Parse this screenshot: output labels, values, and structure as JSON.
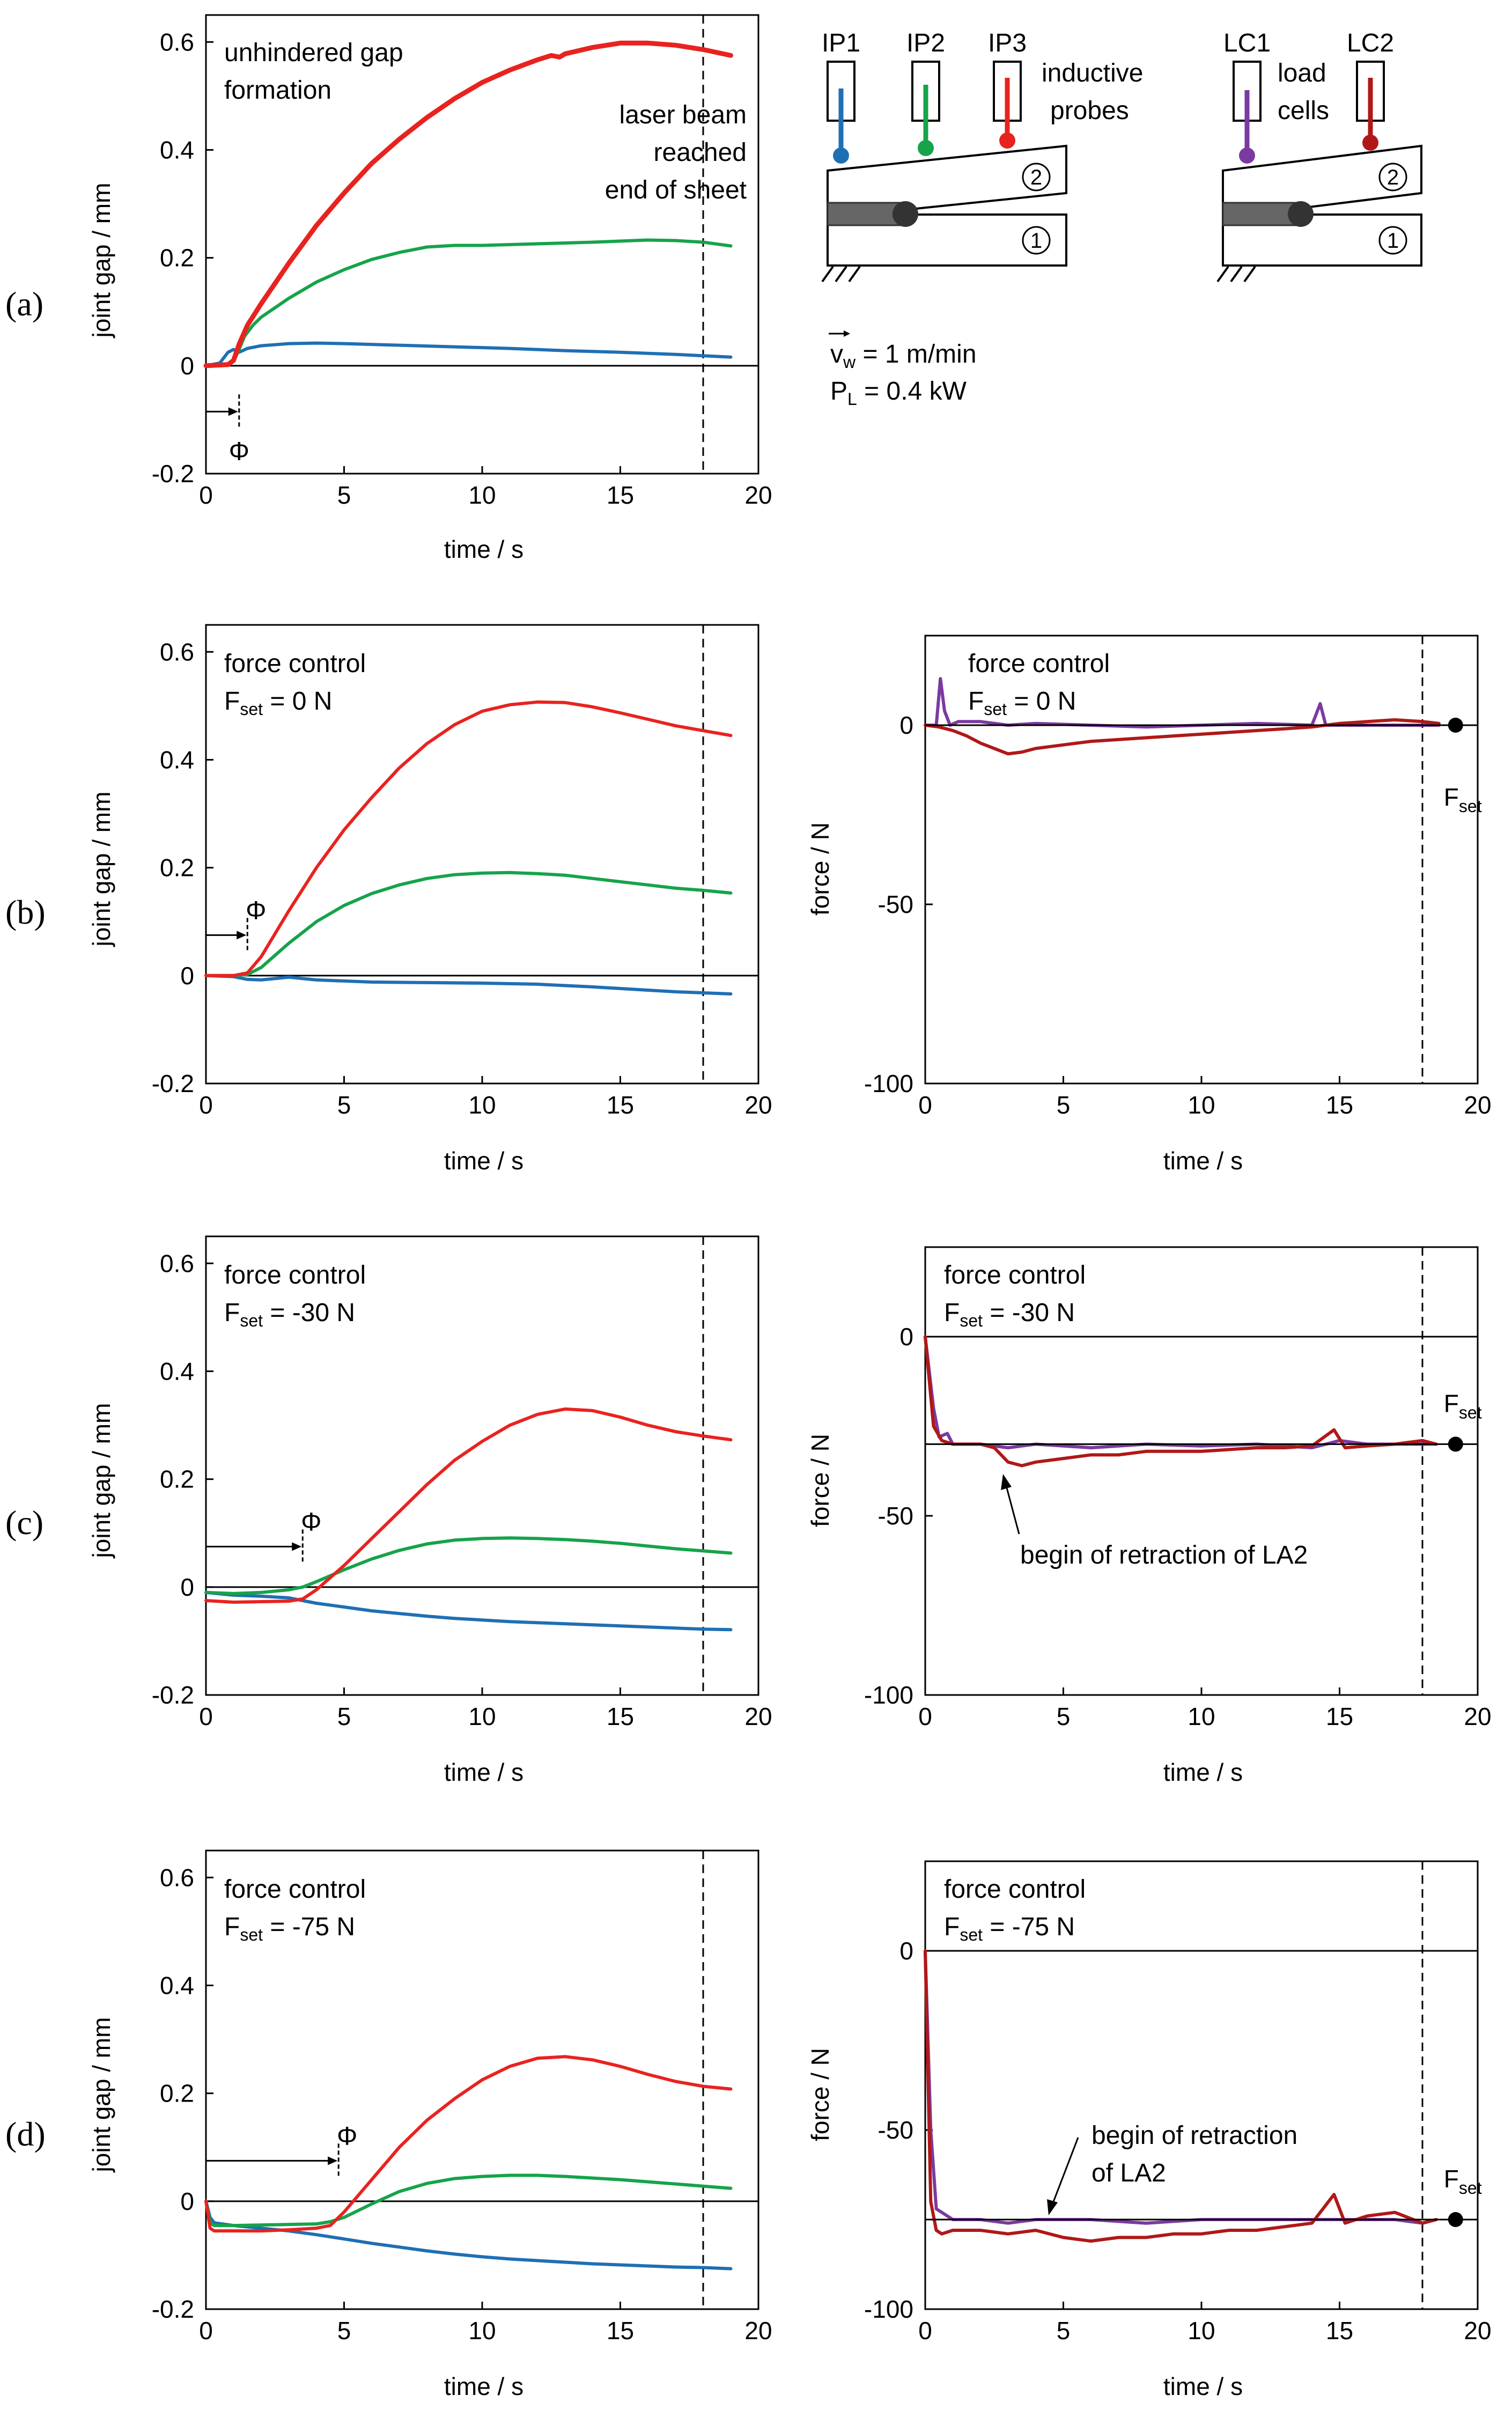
{
  "colors": {
    "ip1": "#1f6fb4",
    "ip2": "#16a34a",
    "ip3": "#e8231f",
    "lc1": "#7b3aa0",
    "lc2": "#b01818",
    "axis": "#000000"
  },
  "common": {
    "xlabel": "time / s",
    "gap_ylabel": "joint gap / mm",
    "force_ylabel": "force / N",
    "dashed_line_time": 18,
    "gap_xticks": [
      "0",
      "5",
      "10",
      "15",
      "20"
    ],
    "gap_yticks": [
      "-0.2",
      "0",
      "0.2",
      "0.4",
      "0.6"
    ],
    "force_yticks": [
      "-100",
      "-50",
      "0"
    ],
    "phi_symbol": "Φ",
    "fset_main": "F",
    "fset_sub": "set"
  },
  "legend": {
    "probes": [
      "IP1",
      "IP2",
      "IP3"
    ],
    "probes_label_line1": "inductive",
    "probes_label_line2": "probes",
    "cells": [
      "LC1",
      "LC2"
    ],
    "cells_label_line1": "load",
    "cells_label_line2": "cells",
    "part_top": "2",
    "part_bottom": "1",
    "vw_main": "v",
    "vw_sub": "w",
    "vw_value": " = 1 m/min",
    "pl_main": "P",
    "pl_sub": "L",
    "pl_value": " = 0.4 kW"
  },
  "panels": {
    "a": {
      "label": "(a)",
      "title1": "unhindered gap",
      "title2": "formation",
      "annot1": "laser beam",
      "annot2": "reached",
      "annot3": "end of sheet"
    },
    "b": {
      "label": "(b)",
      "title1": "force control",
      "fset_value": " = 0 N"
    },
    "c": {
      "label": "(c)",
      "title1": "force control",
      "fset_value": " = -30 N",
      "annot": "begin of retraction of LA2"
    },
    "d": {
      "label": "(d)",
      "title1": "force control",
      "fset_value": " = -75 N",
      "annot1": "begin of retraction",
      "annot2": "of LA2"
    }
  },
  "chart_data": [
    {
      "id": "a_gap",
      "type": "line",
      "xlabel": "time / s",
      "ylabel": "joint gap / mm",
      "xlim": [
        0,
        20
      ],
      "ylim": [
        -0.2,
        0.65
      ],
      "phi_time": 1.2,
      "series": [
        {
          "name": "IP1",
          "x": [
            0,
            0.5,
            0.8,
            1.0,
            1.2,
            1.5,
            2,
            3,
            4,
            5,
            7,
            9,
            11,
            13,
            15,
            17,
            19
          ],
          "y": [
            0,
            0.005,
            0.025,
            0.03,
            0.025,
            0.032,
            0.037,
            0.041,
            0.042,
            0.041,
            0.038,
            0.035,
            0.032,
            0.028,
            0.025,
            0.021,
            0.016
          ]
        },
        {
          "name": "IP2",
          "x": [
            0,
            0.8,
            1.0,
            1.2,
            1.4,
            1.7,
            2,
            3,
            4,
            5,
            6,
            7,
            8,
            9,
            10,
            12,
            14,
            16,
            17,
            18,
            19
          ],
          "y": [
            0,
            0.002,
            0.008,
            0.03,
            0.055,
            0.075,
            0.09,
            0.125,
            0.155,
            0.178,
            0.197,
            0.21,
            0.22,
            0.223,
            0.223,
            0.226,
            0.229,
            0.233,
            0.232,
            0.229,
            0.222
          ]
        },
        {
          "name": "IP3",
          "x": [
            0,
            0.8,
            1.0,
            1.2,
            1.5,
            2,
            3,
            4,
            5,
            6,
            7,
            8,
            9,
            10,
            11,
            12,
            12.5,
            12.8,
            13,
            14,
            15,
            16,
            17,
            18,
            19
          ],
          "y": [
            0,
            0.002,
            0.01,
            0.04,
            0.075,
            0.115,
            0.19,
            0.26,
            0.32,
            0.375,
            0.42,
            0.46,
            0.495,
            0.525,
            0.548,
            0.567,
            0.575,
            0.572,
            0.578,
            0.59,
            0.598,
            0.598,
            0.594,
            0.586,
            0.575
          ]
        }
      ]
    },
    {
      "id": "b_gap",
      "type": "line",
      "xlabel": "time / s",
      "ylabel": "joint gap / mm",
      "xlim": [
        0,
        20
      ],
      "ylim": [
        -0.2,
        0.65
      ],
      "phi_time": 1.5,
      "series": [
        {
          "name": "IP1",
          "x": [
            0,
            1,
            1.5,
            2,
            3,
            4,
            6,
            8,
            10,
            12,
            14,
            16,
            17,
            19
          ],
          "y": [
            0,
            -0.002,
            -0.007,
            -0.008,
            -0.003,
            -0.008,
            -0.012,
            -0.013,
            -0.014,
            -0.016,
            -0.021,
            -0.027,
            -0.03,
            -0.034
          ]
        },
        {
          "name": "IP2",
          "x": [
            0,
            1,
            1.5,
            2,
            3,
            4,
            5,
            6,
            7,
            8,
            9,
            10,
            11,
            12,
            13,
            14,
            15,
            16,
            17,
            18,
            19
          ],
          "y": [
            0,
            0,
            0.002,
            0.015,
            0.06,
            0.1,
            0.13,
            0.152,
            0.168,
            0.18,
            0.187,
            0.19,
            0.191,
            0.189,
            0.186,
            0.18,
            0.174,
            0.168,
            0.162,
            0.158,
            0.153
          ]
        },
        {
          "name": "IP3",
          "x": [
            0,
            1,
            1.5,
            2,
            3,
            4,
            5,
            6,
            7,
            8,
            9,
            10,
            11,
            12,
            13,
            14,
            15,
            16,
            17,
            18,
            19
          ],
          "y": [
            0,
            0,
            0.005,
            0.035,
            0.12,
            0.2,
            0.27,
            0.33,
            0.385,
            0.43,
            0.465,
            0.49,
            0.502,
            0.507,
            0.506,
            0.498,
            0.487,
            0.475,
            0.463,
            0.454,
            0.445
          ]
        }
      ]
    },
    {
      "id": "b_force",
      "type": "line",
      "xlabel": "time / s",
      "ylabel": "force / N",
      "xlim": [
        0,
        20
      ],
      "ylim": [
        -100,
        25
      ],
      "fset": 0,
      "fset_time": 19.2,
      "series": [
        {
          "name": "LC1",
          "x": [
            0,
            0.4,
            0.55,
            0.7,
            0.9,
            1.2,
            2,
            3,
            4,
            6,
            8,
            10,
            12,
            14,
            14.3,
            14.5,
            14.8,
            16,
            18,
            18.6
          ],
          "y": [
            0,
            0,
            13,
            4,
            0,
            1,
            1,
            0,
            0.5,
            0,
            -0.5,
            0,
            0.5,
            0,
            6,
            0,
            0,
            0,
            0,
            0
          ]
        },
        {
          "name": "LC2",
          "x": [
            0,
            0.5,
            1.0,
            1.5,
            2,
            2.5,
            3,
            3.5,
            4,
            5,
            6,
            7,
            8,
            9,
            10,
            11,
            12,
            13,
            14,
            15,
            16,
            17,
            18,
            18.6
          ],
          "y": [
            0,
            -0.5,
            -1.5,
            -3,
            -5,
            -6.5,
            -8,
            -7.5,
            -6.5,
            -5.5,
            -4.5,
            -4,
            -3.5,
            -3,
            -2.5,
            -2,
            -1.5,
            -1,
            -0.5,
            0.5,
            1,
            1.5,
            1,
            0.5
          ]
        }
      ]
    },
    {
      "id": "c_gap",
      "type": "line",
      "xlabel": "time / s",
      "ylabel": "joint gap / mm",
      "xlim": [
        0,
        20
      ],
      "ylim": [
        -0.2,
        0.65
      ],
      "phi_time": 3.5,
      "series": [
        {
          "name": "IP1",
          "x": [
            0,
            1,
            2,
            3,
            3.5,
            4,
            5,
            6,
            7,
            8,
            9,
            10,
            11,
            12,
            13,
            14,
            15,
            16,
            17,
            18,
            19
          ],
          "y": [
            -0.01,
            -0.015,
            -0.017,
            -0.02,
            -0.025,
            -0.03,
            -0.037,
            -0.044,
            -0.049,
            -0.054,
            -0.058,
            -0.061,
            -0.064,
            -0.066,
            -0.068,
            -0.07,
            -0.072,
            -0.074,
            -0.076,
            -0.078,
            -0.079
          ]
        },
        {
          "name": "IP2",
          "x": [
            0,
            1,
            2,
            3,
            3.5,
            4,
            5,
            6,
            7,
            8,
            9,
            10,
            11,
            12,
            13,
            14,
            15,
            16,
            17,
            18,
            19
          ],
          "y": [
            -0.01,
            -0.012,
            -0.01,
            -0.005,
            0,
            0.01,
            0.032,
            0.052,
            0.068,
            0.08,
            0.087,
            0.09,
            0.091,
            0.09,
            0.088,
            0.085,
            0.081,
            0.076,
            0.071,
            0.067,
            0.063
          ]
        },
        {
          "name": "IP3",
          "x": [
            0,
            1,
            2,
            3,
            3.5,
            4,
            5,
            6,
            7,
            8,
            9,
            10,
            11,
            12,
            13,
            14,
            15,
            16,
            17,
            18,
            19
          ],
          "y": [
            -0.025,
            -0.028,
            -0.027,
            -0.026,
            -0.022,
            -0.005,
            0.04,
            0.09,
            0.14,
            0.19,
            0.235,
            0.27,
            0.3,
            0.32,
            0.33,
            0.327,
            0.315,
            0.3,
            0.288,
            0.28,
            0.273
          ]
        }
      ]
    },
    {
      "id": "c_force",
      "type": "line",
      "xlabel": "time / s",
      "ylabel": "force / N",
      "xlim": [
        0,
        20
      ],
      "ylim": [
        -100,
        25
      ],
      "fset": -30,
      "fset_time": 19.2,
      "series": [
        {
          "name": "LC1",
          "x": [
            0,
            0.3,
            0.5,
            0.8,
            1.0,
            2,
            3,
            4,
            6,
            8,
            10,
            12,
            14,
            15,
            16,
            17,
            18,
            18.5
          ],
          "y": [
            0,
            -20,
            -28,
            -27,
            -30,
            -30,
            -31,
            -30,
            -31,
            -30,
            -30.5,
            -30,
            -31,
            -29,
            -30,
            -30,
            -30,
            -30
          ]
        },
        {
          "name": "LC2",
          "x": [
            0,
            0.3,
            0.6,
            1.0,
            2,
            2.5,
            3,
            3.5,
            4,
            5,
            6,
            7,
            8,
            9,
            10,
            11,
            12,
            13,
            14,
            14.8,
            15.2,
            16,
            17,
            18,
            18.5
          ],
          "y": [
            0,
            -25,
            -29,
            -30,
            -30,
            -31,
            -35,
            -36,
            -35,
            -34,
            -33,
            -33,
            -32,
            -32,
            -32,
            -31.5,
            -31,
            -31,
            -30.5,
            -26,
            -31,
            -30.5,
            -30,
            -29,
            -30
          ]
        }
      ]
    },
    {
      "id": "d_gap",
      "type": "line",
      "xlabel": "time / s",
      "ylabel": "joint gap / mm",
      "xlim": [
        0,
        20
      ],
      "ylim": [
        -0.2,
        0.65
      ],
      "phi_time": 4.8,
      "series": [
        {
          "name": "IP1",
          "x": [
            0,
            0.15,
            0.3,
            1,
            2,
            3,
            4,
            5,
            6,
            7,
            8,
            9,
            10,
            11,
            12,
            13,
            14,
            15,
            16,
            17,
            18,
            19
          ],
          "y": [
            0,
            -0.03,
            -0.04,
            -0.045,
            -0.05,
            -0.055,
            -0.062,
            -0.07,
            -0.078,
            -0.085,
            -0.092,
            -0.098,
            -0.103,
            -0.107,
            -0.11,
            -0.113,
            -0.116,
            -0.118,
            -0.12,
            -0.122,
            -0.123,
            -0.125
          ]
        },
        {
          "name": "IP2",
          "x": [
            0,
            0.15,
            0.3,
            1,
            2,
            3,
            4,
            4.5,
            5,
            6,
            7,
            8,
            9,
            10,
            11,
            12,
            13,
            14,
            15,
            16,
            17,
            18,
            19
          ],
          "y": [
            0,
            -0.04,
            -0.045,
            -0.045,
            -0.044,
            -0.043,
            -0.042,
            -0.038,
            -0.03,
            -0.005,
            0.018,
            0.033,
            0.042,
            0.046,
            0.048,
            0.048,
            0.046,
            0.043,
            0.04,
            0.036,
            0.032,
            0.028,
            0.024
          ]
        },
        {
          "name": "IP3",
          "x": [
            0,
            0.15,
            0.3,
            1,
            2,
            3,
            4,
            4.5,
            5,
            6,
            7,
            8,
            9,
            10,
            11,
            12,
            13,
            14,
            15,
            16,
            17,
            18,
            19
          ],
          "y": [
            0,
            -0.05,
            -0.055,
            -0.055,
            -0.055,
            -0.053,
            -0.05,
            -0.045,
            -0.02,
            0.04,
            0.1,
            0.15,
            0.19,
            0.225,
            0.25,
            0.265,
            0.268,
            0.262,
            0.25,
            0.235,
            0.222,
            0.213,
            0.208
          ]
        }
      ]
    },
    {
      "id": "d_force",
      "type": "line",
      "xlabel": "time / s",
      "ylabel": "force / N",
      "xlim": [
        0,
        20
      ],
      "ylim": [
        -100,
        25
      ],
      "fset": -75,
      "fset_time": 19.2,
      "series": [
        {
          "name": "LC1",
          "x": [
            0,
            0.2,
            0.4,
            0.6,
            1.0,
            2,
            3,
            4,
            6,
            8,
            10,
            12,
            14,
            15,
            16,
            17,
            18,
            18.5
          ],
          "y": [
            0,
            -50,
            -72,
            -73,
            -75,
            -75,
            -76,
            -75,
            -75,
            -76,
            -75,
            -75,
            -75,
            -75,
            -75,
            -75,
            -76,
            -75
          ]
        },
        {
          "name": "LC2",
          "x": [
            0,
            0.2,
            0.4,
            0.6,
            1.0,
            2,
            3,
            4,
            5,
            6,
            7,
            8,
            9,
            10,
            11,
            12,
            13,
            14,
            14.8,
            15.2,
            16,
            17,
            18,
            18.5
          ],
          "y": [
            0,
            -70,
            -78,
            -79,
            -78,
            -78,
            -79,
            -78,
            -80,
            -81,
            -80,
            -80,
            -79,
            -79,
            -78,
            -78,
            -77,
            -76,
            -68,
            -76,
            -74,
            -73,
            -76,
            -75
          ]
        }
      ]
    }
  ]
}
